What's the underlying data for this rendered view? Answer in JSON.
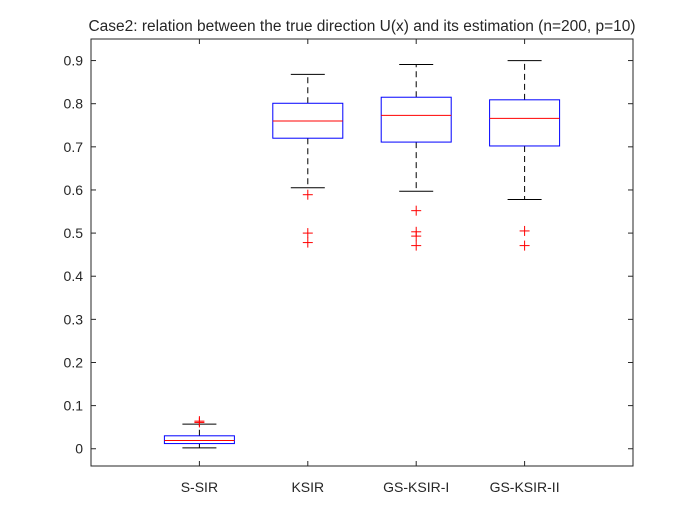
{
  "chart_data": {
    "type": "boxplot",
    "title": "Case2: relation between the true direction U(x) and its estimation (n=200, p=10)",
    "xlabel": "",
    "ylabel": "",
    "ylim": [
      -0.04,
      0.95
    ],
    "yticks": [
      0,
      0.1,
      0.2,
      0.3,
      0.4,
      0.5,
      0.6,
      0.7,
      0.8,
      0.9
    ],
    "ytick_labels": [
      "0",
      "0.1",
      "0.2",
      "0.3",
      "0.4",
      "0.5",
      "0.6",
      "0.7",
      "0.8",
      "0.9"
    ],
    "categories": [
      "S-SIR",
      "KSIR",
      "GS-KSIR-I",
      "GS-KSIR-II"
    ],
    "boxes": [
      {
        "name": "S-SIR",
        "lower_whisker": 0.002,
        "q1": 0.012,
        "median": 0.019,
        "q3": 0.03,
        "upper_whisker": 0.057,
        "outliers": [
          0.061,
          0.064
        ]
      },
      {
        "name": "KSIR",
        "lower_whisker": 0.605,
        "q1": 0.72,
        "median": 0.76,
        "q3": 0.801,
        "upper_whisker": 0.868,
        "outliers": [
          0.589,
          0.5,
          0.478
        ]
      },
      {
        "name": "GS-KSIR-I",
        "lower_whisker": 0.597,
        "q1": 0.711,
        "median": 0.773,
        "q3": 0.815,
        "upper_whisker": 0.891,
        "outliers": [
          0.552,
          0.503,
          0.493,
          0.471
        ]
      },
      {
        "name": "GS-KSIR-II",
        "lower_whisker": 0.578,
        "q1": 0.702,
        "median": 0.766,
        "q3": 0.809,
        "upper_whisker": 0.9,
        "outliers": [
          0.505,
          0.471
        ]
      }
    ],
    "colors": {
      "box": "#0000ff",
      "median": "#ff0000",
      "whisker": "#000000",
      "outlier": "#ff0000",
      "axis": "#262626"
    }
  }
}
